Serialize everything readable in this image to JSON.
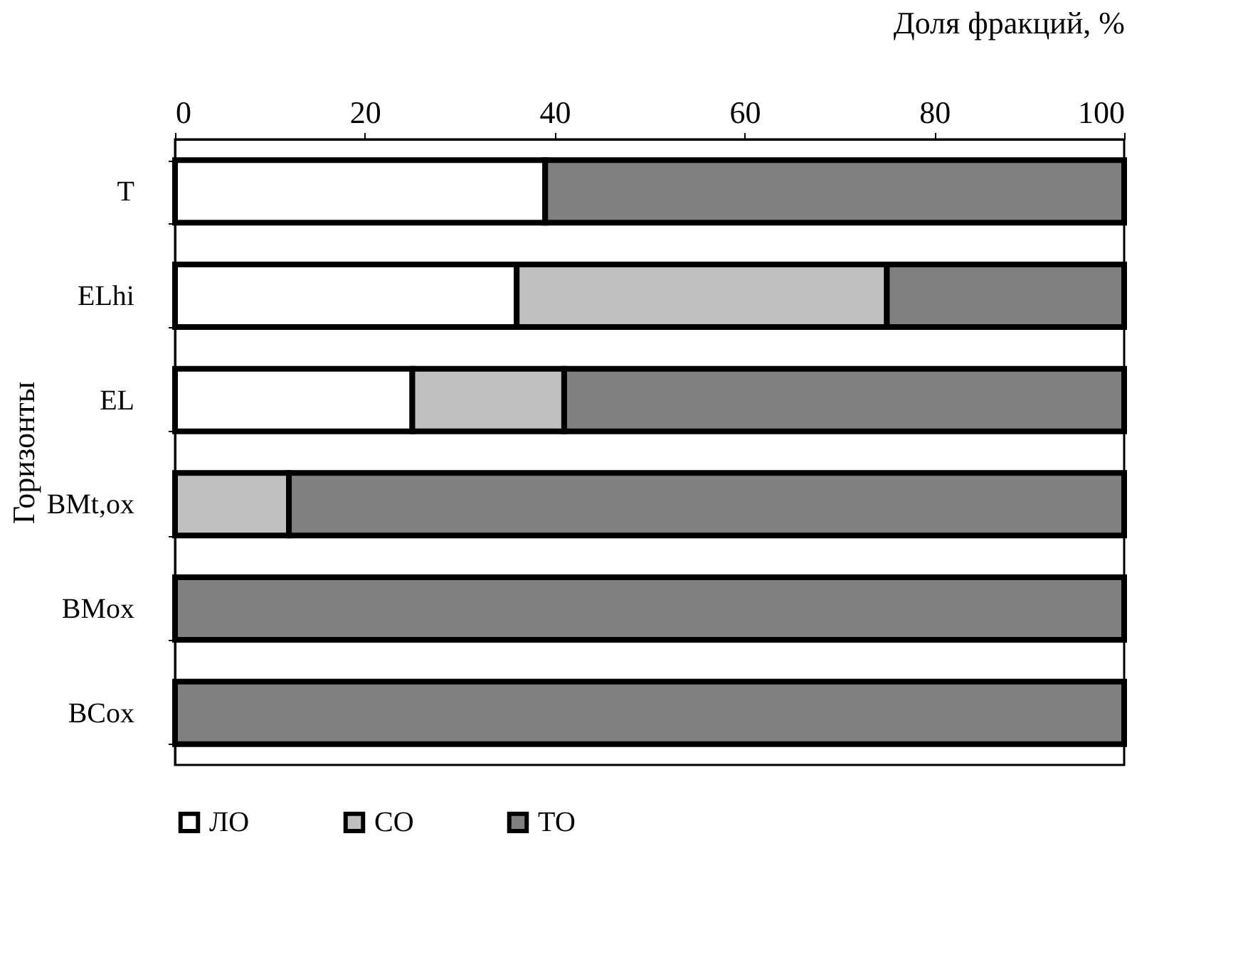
{
  "chart_data": {
    "type": "bar",
    "orientation": "horizontal",
    "stacked": true,
    "xlabel": "Доля фракций, %",
    "ylabel": "Горизонты",
    "categories": [
      "T",
      "ELhi",
      "EL",
      "BMt,ox",
      "BMox",
      "BCox"
    ],
    "series": [
      {
        "name": "ЛО",
        "color": "#ffffff",
        "values": [
          39,
          36,
          25,
          null,
          null,
          null
        ]
      },
      {
        "name": "СО",
        "color": "#c0c0c0",
        "values": [
          null,
          39,
          16,
          12,
          null,
          null
        ]
      },
      {
        "name": "ТО",
        "color": "#808080",
        "values": [
          61,
          25,
          59,
          88,
          100,
          100
        ]
      }
    ],
    "xlim": [
      0,
      100
    ],
    "xticks": [
      0,
      20,
      40,
      60,
      80,
      100
    ],
    "grid": false,
    "legend": "bottom"
  }
}
